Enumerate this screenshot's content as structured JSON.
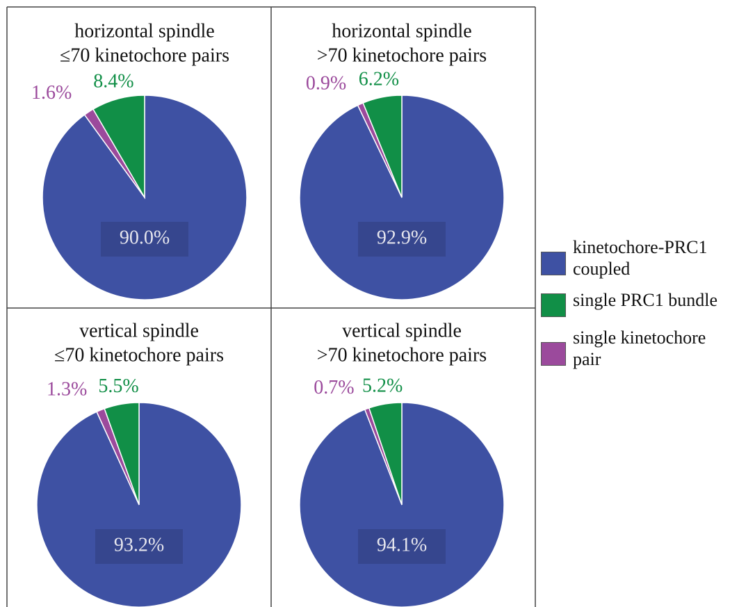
{
  "chart_data": [
    {
      "type": "pie",
      "title": "horizontal spindle",
      "subtitle": "≤70 kinetochore pairs",
      "values": [
        90.0,
        8.4,
        1.6
      ],
      "value_labels": [
        "90.0%",
        "8.4%",
        "1.6%"
      ]
    },
    {
      "type": "pie",
      "title": "horizontal spindle",
      "subtitle": ">70 kinetochore pairs",
      "values": [
        92.9,
        6.2,
        0.9
      ],
      "value_labels": [
        "92.9%",
        "6.2%",
        "0.9%"
      ]
    },
    {
      "type": "pie",
      "title": "vertical spindle",
      "subtitle": "≤70 kinetochore pairs",
      "values": [
        93.2,
        5.5,
        1.3
      ],
      "value_labels": [
        "93.2%",
        "5.5%",
        "1.3%"
      ]
    },
    {
      "type": "pie",
      "title": "vertical spindle",
      "subtitle": ">70 kinetochore pairs",
      "values": [
        94.1,
        5.2,
        0.7
      ],
      "value_labels": [
        "94.1%",
        "5.2%",
        "0.7%"
      ]
    }
  ],
  "legend": {
    "labels": [
      "kinetochore-PRC1 coupled",
      "single PRC1 bundle",
      "single kinetochore pair"
    ],
    "colors": [
      "#3e51a3",
      "#118f47",
      "#9b4a9c"
    ]
  }
}
